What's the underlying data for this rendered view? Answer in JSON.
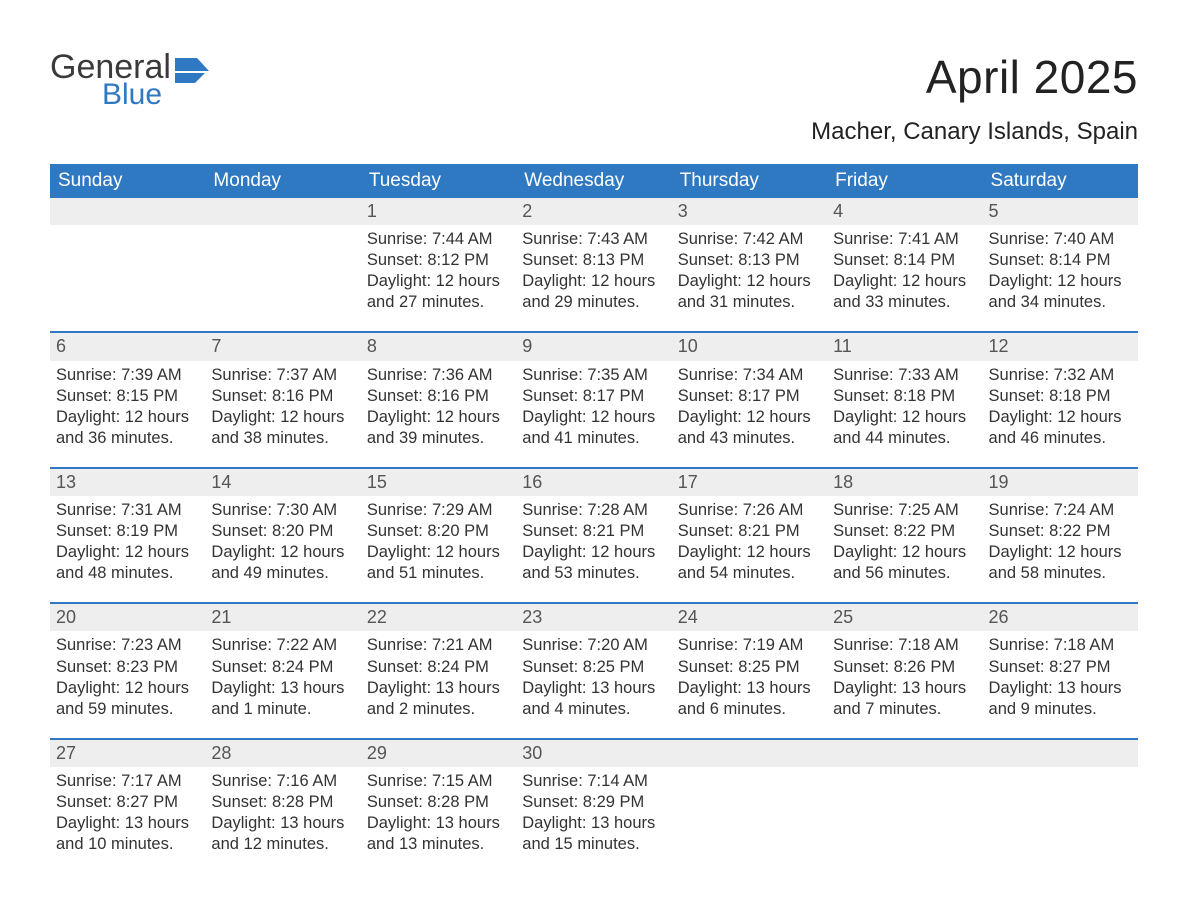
{
  "logo": {
    "line1": "General",
    "line2": "Blue",
    "flag_color": "#2f78c2",
    "text_color": "#3a3a3a"
  },
  "title": "April 2025",
  "location": "Macher, Canary Islands, Spain",
  "colors": {
    "header_bg": "#2f78c2",
    "header_text": "#ffffff",
    "daynum_bg": "#eeeeee",
    "row_border": "#2f78c2",
    "body_text": "#333333"
  },
  "fonts": {
    "title_size_pt": 34,
    "location_size_pt": 18,
    "header_size_pt": 14,
    "cell_size_pt": 12
  },
  "weekday_headers": [
    "Sunday",
    "Monday",
    "Tuesday",
    "Wednesday",
    "Thursday",
    "Friday",
    "Saturday"
  ],
  "weeks": [
    [
      null,
      null,
      {
        "n": "1",
        "sr": "Sunrise: 7:44 AM",
        "ss": "Sunset: 8:12 PM",
        "d1": "Daylight: 12 hours",
        "d2": "and 27 minutes."
      },
      {
        "n": "2",
        "sr": "Sunrise: 7:43 AM",
        "ss": "Sunset: 8:13 PM",
        "d1": "Daylight: 12 hours",
        "d2": "and 29 minutes."
      },
      {
        "n": "3",
        "sr": "Sunrise: 7:42 AM",
        "ss": "Sunset: 8:13 PM",
        "d1": "Daylight: 12 hours",
        "d2": "and 31 minutes."
      },
      {
        "n": "4",
        "sr": "Sunrise: 7:41 AM",
        "ss": "Sunset: 8:14 PM",
        "d1": "Daylight: 12 hours",
        "d2": "and 33 minutes."
      },
      {
        "n": "5",
        "sr": "Sunrise: 7:40 AM",
        "ss": "Sunset: 8:14 PM",
        "d1": "Daylight: 12 hours",
        "d2": "and 34 minutes."
      }
    ],
    [
      {
        "n": "6",
        "sr": "Sunrise: 7:39 AM",
        "ss": "Sunset: 8:15 PM",
        "d1": "Daylight: 12 hours",
        "d2": "and 36 minutes."
      },
      {
        "n": "7",
        "sr": "Sunrise: 7:37 AM",
        "ss": "Sunset: 8:16 PM",
        "d1": "Daylight: 12 hours",
        "d2": "and 38 minutes."
      },
      {
        "n": "8",
        "sr": "Sunrise: 7:36 AM",
        "ss": "Sunset: 8:16 PM",
        "d1": "Daylight: 12 hours",
        "d2": "and 39 minutes."
      },
      {
        "n": "9",
        "sr": "Sunrise: 7:35 AM",
        "ss": "Sunset: 8:17 PM",
        "d1": "Daylight: 12 hours",
        "d2": "and 41 minutes."
      },
      {
        "n": "10",
        "sr": "Sunrise: 7:34 AM",
        "ss": "Sunset: 8:17 PM",
        "d1": "Daylight: 12 hours",
        "d2": "and 43 minutes."
      },
      {
        "n": "11",
        "sr": "Sunrise: 7:33 AM",
        "ss": "Sunset: 8:18 PM",
        "d1": "Daylight: 12 hours",
        "d2": "and 44 minutes."
      },
      {
        "n": "12",
        "sr": "Sunrise: 7:32 AM",
        "ss": "Sunset: 8:18 PM",
        "d1": "Daylight: 12 hours",
        "d2": "and 46 minutes."
      }
    ],
    [
      {
        "n": "13",
        "sr": "Sunrise: 7:31 AM",
        "ss": "Sunset: 8:19 PM",
        "d1": "Daylight: 12 hours",
        "d2": "and 48 minutes."
      },
      {
        "n": "14",
        "sr": "Sunrise: 7:30 AM",
        "ss": "Sunset: 8:20 PM",
        "d1": "Daylight: 12 hours",
        "d2": "and 49 minutes."
      },
      {
        "n": "15",
        "sr": "Sunrise: 7:29 AM",
        "ss": "Sunset: 8:20 PM",
        "d1": "Daylight: 12 hours",
        "d2": "and 51 minutes."
      },
      {
        "n": "16",
        "sr": "Sunrise: 7:28 AM",
        "ss": "Sunset: 8:21 PM",
        "d1": "Daylight: 12 hours",
        "d2": "and 53 minutes."
      },
      {
        "n": "17",
        "sr": "Sunrise: 7:26 AM",
        "ss": "Sunset: 8:21 PM",
        "d1": "Daylight: 12 hours",
        "d2": "and 54 minutes."
      },
      {
        "n": "18",
        "sr": "Sunrise: 7:25 AM",
        "ss": "Sunset: 8:22 PM",
        "d1": "Daylight: 12 hours",
        "d2": "and 56 minutes."
      },
      {
        "n": "19",
        "sr": "Sunrise: 7:24 AM",
        "ss": "Sunset: 8:22 PM",
        "d1": "Daylight: 12 hours",
        "d2": "and 58 minutes."
      }
    ],
    [
      {
        "n": "20",
        "sr": "Sunrise: 7:23 AM",
        "ss": "Sunset: 8:23 PM",
        "d1": "Daylight: 12 hours",
        "d2": "and 59 minutes."
      },
      {
        "n": "21",
        "sr": "Sunrise: 7:22 AM",
        "ss": "Sunset: 8:24 PM",
        "d1": "Daylight: 13 hours",
        "d2": "and 1 minute."
      },
      {
        "n": "22",
        "sr": "Sunrise: 7:21 AM",
        "ss": "Sunset: 8:24 PM",
        "d1": "Daylight: 13 hours",
        "d2": "and 2 minutes."
      },
      {
        "n": "23",
        "sr": "Sunrise: 7:20 AM",
        "ss": "Sunset: 8:25 PM",
        "d1": "Daylight: 13 hours",
        "d2": "and 4 minutes."
      },
      {
        "n": "24",
        "sr": "Sunrise: 7:19 AM",
        "ss": "Sunset: 8:25 PM",
        "d1": "Daylight: 13 hours",
        "d2": "and 6 minutes."
      },
      {
        "n": "25",
        "sr": "Sunrise: 7:18 AM",
        "ss": "Sunset: 8:26 PM",
        "d1": "Daylight: 13 hours",
        "d2": "and 7 minutes."
      },
      {
        "n": "26",
        "sr": "Sunrise: 7:18 AM",
        "ss": "Sunset: 8:27 PM",
        "d1": "Daylight: 13 hours",
        "d2": "and 9 minutes."
      }
    ],
    [
      {
        "n": "27",
        "sr": "Sunrise: 7:17 AM",
        "ss": "Sunset: 8:27 PM",
        "d1": "Daylight: 13 hours",
        "d2": "and 10 minutes."
      },
      {
        "n": "28",
        "sr": "Sunrise: 7:16 AM",
        "ss": "Sunset: 8:28 PM",
        "d1": "Daylight: 13 hours",
        "d2": "and 12 minutes."
      },
      {
        "n": "29",
        "sr": "Sunrise: 7:15 AM",
        "ss": "Sunset: 8:28 PM",
        "d1": "Daylight: 13 hours",
        "d2": "and 13 minutes."
      },
      {
        "n": "30",
        "sr": "Sunrise: 7:14 AM",
        "ss": "Sunset: 8:29 PM",
        "d1": "Daylight: 13 hours",
        "d2": "and 15 minutes."
      },
      null,
      null,
      null
    ]
  ]
}
